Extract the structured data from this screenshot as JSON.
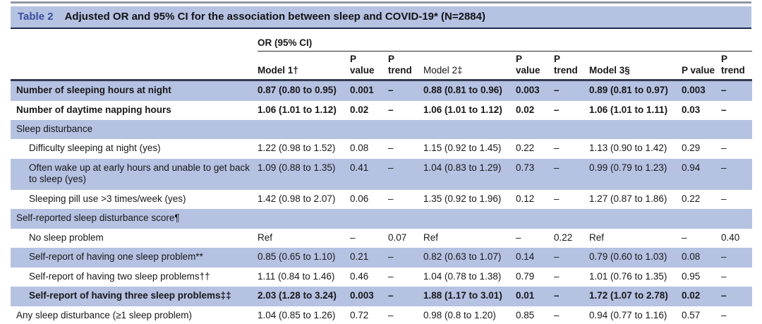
{
  "title": {
    "label": "Table 2",
    "text": "Adjusted OR and 95% CI for the association between sleep and COVID-19* (N=2884)"
  },
  "table": {
    "group_header": "OR (95% CI)",
    "columns": [
      "Model 1†",
      "P\nvalue",
      "P\ntrend",
      "Model 2‡",
      "P\nvalue",
      "P\ntrend",
      "Model 3§",
      "P value",
      "P\ntrend"
    ],
    "rows": [
      {
        "type": "data",
        "label": "Number of sleeping hours at night",
        "indent": false,
        "bold": true,
        "shade": true,
        "cells": [
          "0.87 (0.80 to 0.95)",
          "0.001",
          "–",
          "0.88 (0.81 to 0.96)",
          "0.003",
          "–",
          "0.89 (0.81 to 0.97)",
          "0.003",
          "–"
        ]
      },
      {
        "type": "data",
        "label": "Number of daytime napping hours",
        "indent": false,
        "bold": true,
        "shade": false,
        "cells": [
          "1.06 (1.01 to 1.12)",
          "0.02",
          "–",
          "1.06 (1.01 to 1.12)",
          "0.02",
          "–",
          "1.06 (1.01 to 1.11)",
          "0.03",
          "–"
        ]
      },
      {
        "type": "section",
        "label": "Sleep disturbance",
        "shade": true
      },
      {
        "type": "data",
        "label": "Difficulty sleeping at night (yes)",
        "indent": true,
        "bold": false,
        "shade": false,
        "cells": [
          "1.22 (0.98 to 1.52)",
          "0.08",
          "–",
          "1.15 (0.92 to 1.45)",
          "0.22",
          "–",
          "1.13 (0.90 to 1.42)",
          "0.29",
          "–"
        ]
      },
      {
        "type": "data",
        "label": "Often wake up at early hours and unable to get back to sleep (yes)",
        "indent": true,
        "bold": false,
        "shade": true,
        "cells": [
          "1.09 (0.88 to 1.35)",
          "0.41",
          "–",
          "1.04 (0.83 to 1.29)",
          "0.73",
          "–",
          "0.99 (0.79 to 1.23)",
          "0.94",
          "–"
        ]
      },
      {
        "type": "data",
        "label": "Sleeping pill use >3 times/week (yes)",
        "indent": true,
        "bold": false,
        "shade": false,
        "cells": [
          "1.42 (0.98 to 2.07)",
          "0.06",
          "–",
          "1.35 (0.92 to 1.96)",
          "0.12",
          "–",
          "1.27 (0.87 to 1.86)",
          "0.22",
          "–"
        ]
      },
      {
        "type": "section",
        "label": "Self-reported sleep disturbance score¶",
        "shade": true
      },
      {
        "type": "data",
        "label": "No sleep problem",
        "indent": true,
        "bold": false,
        "shade": false,
        "cells": [
          "Ref",
          "–",
          "0.07",
          "Ref",
          "–",
          "0.22",
          "Ref",
          "–",
          "0.40"
        ]
      },
      {
        "type": "data",
        "label": "Self-report of having one sleep problem**",
        "indent": true,
        "bold": false,
        "shade": true,
        "cells": [
          "0.85 (0.65 to 1.10)",
          "0.21",
          "–",
          "0.82 (0.63 to 1.07)",
          "0.14",
          "–",
          "0.79 (0.60 to 1.03)",
          "0.08",
          "–"
        ]
      },
      {
        "type": "data",
        "label": "Self-report of having two sleep problems††",
        "indent": true,
        "bold": false,
        "shade": false,
        "cells": [
          "1.11 (0.84 to 1.46)",
          "0.46",
          "–",
          "1.04 (0.78 to 1.38)",
          "0.79",
          "–",
          "1.01 (0.76 to 1.35)",
          "0.95",
          "–"
        ]
      },
      {
        "type": "data",
        "label": "Self-report of having three sleep problems‡‡",
        "indent": true,
        "bold": true,
        "shade": true,
        "cells": [
          "2.03 (1.28 to 3.24)",
          "0.003",
          "–",
          "1.88 (1.17 to 3.01)",
          "0.01",
          "–",
          "1.72 (1.07 to 2.78)",
          "0.02",
          "–"
        ]
      },
      {
        "type": "data",
        "label": "Any sleep disturbance (≥1 sleep problem)",
        "indent": false,
        "bold": false,
        "shade": false,
        "cells": [
          "1.04 (0.85 to 1.26)",
          "0.72",
          "–",
          "0.98 (0.8 to 1.20)",
          "0.85",
          "–",
          "0.94 (0.77 to 1.16)",
          "0.57",
          "–"
        ]
      }
    ]
  },
  "colors": {
    "band": "#b6c2e2",
    "table_label_accent": "#3b4da0",
    "header_rule": "#333c52",
    "title_rule": "#1e2b50",
    "top_rule": "#8f96a4"
  }
}
